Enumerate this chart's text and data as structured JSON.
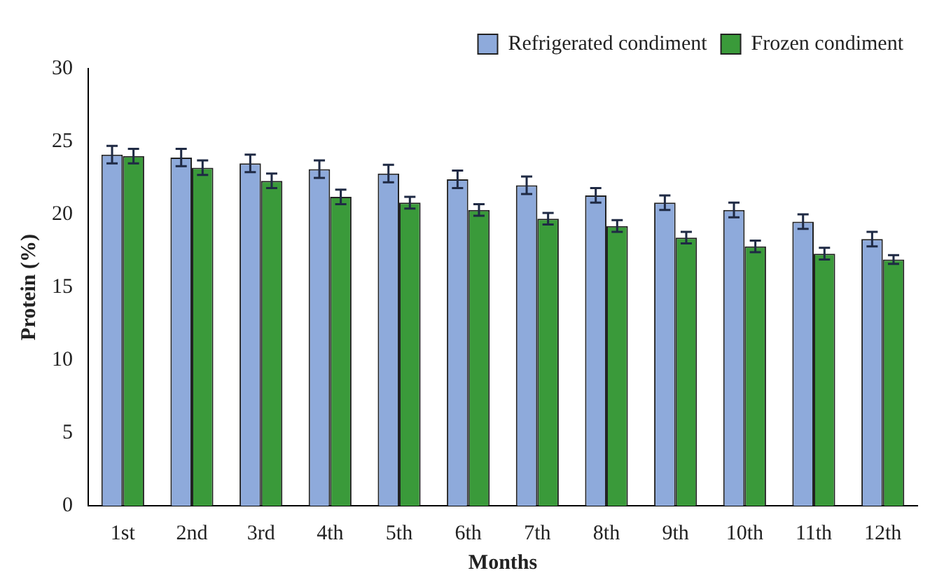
{
  "chart_data": {
    "type": "bar",
    "xlabel": "Months",
    "ylabel": "Protein (%)",
    "categories": [
      "1st",
      "2nd",
      "3rd",
      "4th",
      "5th",
      "6th",
      "7th",
      "8th",
      "9th",
      "10th",
      "11th",
      "12th"
    ],
    "series": [
      {
        "name": "Refrigerated condiment",
        "color": "#8eaadb",
        "values": [
          24.1,
          23.9,
          23.5,
          23.1,
          22.8,
          22.4,
          22.0,
          21.3,
          20.8,
          20.3,
          19.5,
          18.3
        ],
        "errors": [
          0.6,
          0.6,
          0.6,
          0.6,
          0.6,
          0.6,
          0.6,
          0.5,
          0.5,
          0.5,
          0.5,
          0.5
        ]
      },
      {
        "name": "Frozen condiment",
        "color": "#3a9a3a",
        "values": [
          24.0,
          23.2,
          22.3,
          21.2,
          20.8,
          20.3,
          19.7,
          19.2,
          18.4,
          17.8,
          17.3,
          16.9
        ],
        "errors": [
          0.5,
          0.5,
          0.5,
          0.5,
          0.4,
          0.4,
          0.4,
          0.4,
          0.4,
          0.4,
          0.4,
          0.3
        ]
      }
    ],
    "ylim": [
      0,
      30
    ],
    "yticks": [
      0,
      5,
      10,
      15,
      20,
      25,
      30
    ],
    "grid": false,
    "legend": "top right"
  }
}
